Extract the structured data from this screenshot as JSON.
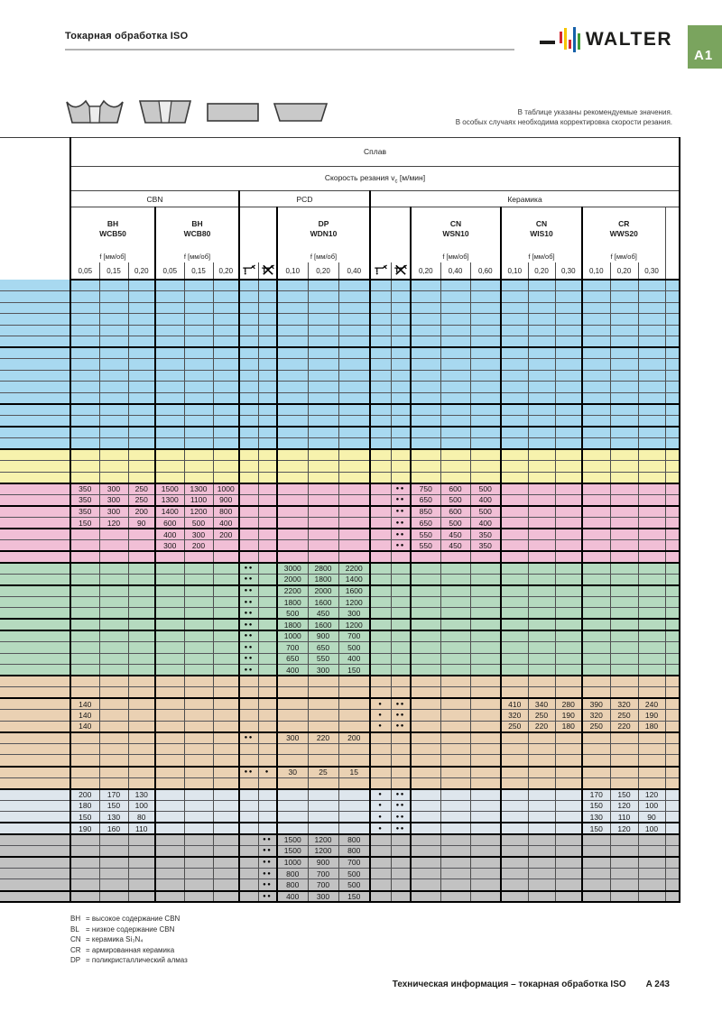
{
  "page": {
    "title": "Токарная обработка ISO",
    "brand": "WALTER",
    "tab_label": "A1",
    "note_line1": "В таблице указаны рекомендуемые значения.",
    "note_line2": "В особых случаях необходима корректировка скорости резания.",
    "footer_text": "Техническая информация – токарная обработка ISO",
    "page_number": "A 243"
  },
  "colors": {
    "tab_green": "#7aa45e",
    "band_blue": "#a8d9f0",
    "band_yellow": "#f7f2ad",
    "band_pink": "#f1bfd6",
    "band_green": "#b5dabf",
    "band_tan": "#ead1b3",
    "band_steel": "#dee6ed",
    "band_gray": "#c2c2c2",
    "logo_red": "#d22630",
    "logo_yellow": "#f6c500",
    "logo_blue": "#1661a9",
    "logo_green": "#3f9c35"
  },
  "table": {
    "header": {
      "splav": "Сплав",
      "speed_prefix": "Скорость резания v",
      "speed_sub": "c",
      "speed_suffix": " [м/мин]",
      "groups": [
        "CBN",
        "PCD",
        "Керамика"
      ],
      "products": [
        {
          "l1": "BH",
          "l2": "WCB50"
        },
        {
          "l1": "BH",
          "l2": "WCB80"
        },
        {
          "l1": "DP",
          "l2": "WDN10"
        },
        {
          "l1": "CN",
          "l2": "WSN10"
        },
        {
          "l1": "CN",
          "l2": "WIS10"
        },
        {
          "l1": "CR",
          "l2": "WWS20"
        }
      ],
      "f_label": "f [мм/об]",
      "feeds": [
        "0,05",
        "0,15",
        "0,20",
        "0,05",
        "0,15",
        "0,20",
        "0,10",
        "0,20",
        "0,40",
        "0,20",
        "0,40",
        "0,60",
        "0,10",
        "0,20",
        "0,30",
        "0,10",
        "0,20",
        "0,30"
      ],
      "wet_icon": "coolant-wet",
      "dry_icon": "coolant-dry"
    },
    "bands": [
      {
        "name": "blue",
        "color_key": "band_blue",
        "thick_after": [
          6,
          11,
          13
        ],
        "rows": [
          {},
          {},
          {},
          {},
          {},
          {},
          {},
          {},
          {},
          {},
          {},
          {},
          {},
          {},
          {}
        ]
      },
      {
        "name": "yellow",
        "color_key": "band_yellow",
        "thick_after": [],
        "rows": [
          {},
          {},
          {}
        ]
      },
      {
        "name": "pink",
        "color_key": "band_pink",
        "thick_after": [
          2,
          4,
          6
        ],
        "rows": [
          {
            "0": "350",
            "1": "300",
            "2": "250",
            "3": "1500",
            "4": "1300",
            "5": "1000",
            "12": "●●",
            "13": "750",
            "14": "600",
            "15": "500"
          },
          {
            "0": "350",
            "1": "300",
            "2": "250",
            "3": "1300",
            "4": "1100",
            "5": "900",
            "12": "●●",
            "13": "650",
            "14": "500",
            "15": "400"
          },
          {
            "0": "350",
            "1": "300",
            "2": "200",
            "3": "1400",
            "4": "1200",
            "5": "800",
            "12": "●●",
            "13": "850",
            "14": "600",
            "15": "500"
          },
          {
            "0": "150",
            "1": "120",
            "2": "90",
            "3": "600",
            "4": "500",
            "5": "400",
            "12": "●●",
            "13": "650",
            "14": "500",
            "15": "400"
          },
          {
            "3": "400",
            "4": "300",
            "5": "200",
            "12": "●●",
            "13": "550",
            "14": "450",
            "15": "350"
          },
          {
            "3": "300",
            "4": "200",
            "12": "●●",
            "13": "550",
            "14": "450",
            "15": "350"
          },
          {}
        ]
      },
      {
        "name": "green",
        "color_key": "band_green",
        "thick_after": [
          2,
          5,
          6
        ],
        "rows": [
          {
            "6": "●●",
            "8": "3000",
            "9": "2800",
            "10": "2200"
          },
          {
            "6": "●●",
            "8": "2000",
            "9": "1800",
            "10": "1400"
          },
          {
            "6": "●●",
            "8": "2200",
            "9": "2000",
            "10": "1600"
          },
          {
            "6": "●●",
            "8": "1800",
            "9": "1600",
            "10": "1200"
          },
          {
            "6": "●●",
            "8": "500",
            "9": "450",
            "10": "300"
          },
          {
            "6": "●●",
            "8": "1800",
            "9": "1600",
            "10": "1200"
          },
          {
            "6": "●●",
            "8": "1000",
            "9": "900",
            "10": "700"
          },
          {
            "6": "●●",
            "8": "700",
            "9": "650",
            "10": "500"
          },
          {
            "6": "●●",
            "8": "650",
            "9": "550",
            "10": "400"
          },
          {
            "6": "●●",
            "8": "400",
            "9": "300",
            "10": "150"
          }
        ]
      },
      {
        "name": "tan",
        "color_key": "band_tan",
        "thick_after": [
          2,
          5,
          8
        ],
        "rows": [
          {},
          {},
          {
            "0": "140",
            "11": "●",
            "12": "●●",
            "16": "410",
            "17": "340",
            "18": "280",
            "19": "390",
            "20": "320",
            "21": "240"
          },
          {
            "0": "140",
            "11": "●",
            "12": "●●",
            "16": "320",
            "17": "250",
            "18": "190",
            "19": "320",
            "20": "250",
            "21": "190"
          },
          {
            "0": "140",
            "11": "●",
            "12": "●●",
            "16": "250",
            "17": "220",
            "18": "180",
            "19": "250",
            "20": "220",
            "21": "180"
          },
          {
            "6": "●●",
            "8": "300",
            "9": "220",
            "10": "200"
          },
          {},
          {},
          {
            "6": "●●",
            "7": "●",
            "8": "30",
            "9": "25",
            "10": "15"
          },
          {}
        ]
      },
      {
        "name": "steel",
        "color_key": "band_steel",
        "thick_after": [
          3
        ],
        "rows": [
          {
            "0": "200",
            "1": "170",
            "2": "130",
            "11": "●",
            "12": "●●",
            "19": "170",
            "20": "150",
            "21": "120"
          },
          {
            "0": "180",
            "1": "150",
            "2": "100",
            "11": "●",
            "12": "●●",
            "19": "150",
            "20": "120",
            "21": "100"
          },
          {
            "0": "150",
            "1": "130",
            "2": "80",
            "11": "●",
            "12": "●●",
            "19": "130",
            "20": "110",
            "21": "90"
          },
          {
            "0": "190",
            "1": "160",
            "2": "110",
            "11": "●",
            "12": "●●",
            "19": "150",
            "20": "120",
            "21": "100"
          }
        ]
      },
      {
        "name": "gray",
        "color_key": "band_gray",
        "thick_after": [
          2,
          5
        ],
        "rows": [
          {
            "7": "●●",
            "8": "1500",
            "9": "1200",
            "10": "800"
          },
          {
            "7": "●●",
            "8": "1500",
            "9": "1200",
            "10": "800"
          },
          {
            "7": "●●",
            "8": "1000",
            "9": "900",
            "10": "700"
          },
          {
            "7": "●●",
            "8": "800",
            "9": "700",
            "10": "500"
          },
          {
            "7": "●●",
            "8": "800",
            "9": "700",
            "10": "500"
          },
          {
            "7": "●●",
            "8": "400",
            "9": "300",
            "10": "150"
          }
        ]
      }
    ]
  },
  "legend": {
    "items": [
      {
        "abbr": "BH",
        "rest": "= высокое содержание CBN"
      },
      {
        "abbr": "BL",
        "rest": "= низкое содержание CBN"
      },
      {
        "abbr": "CN",
        "rest": "= керамика Si₃N₄"
      },
      {
        "abbr": "CR",
        "rest": "= армированная керамика"
      },
      {
        "abbr": "DP",
        "rest": "= поликристаллический алмаз"
      }
    ]
  }
}
